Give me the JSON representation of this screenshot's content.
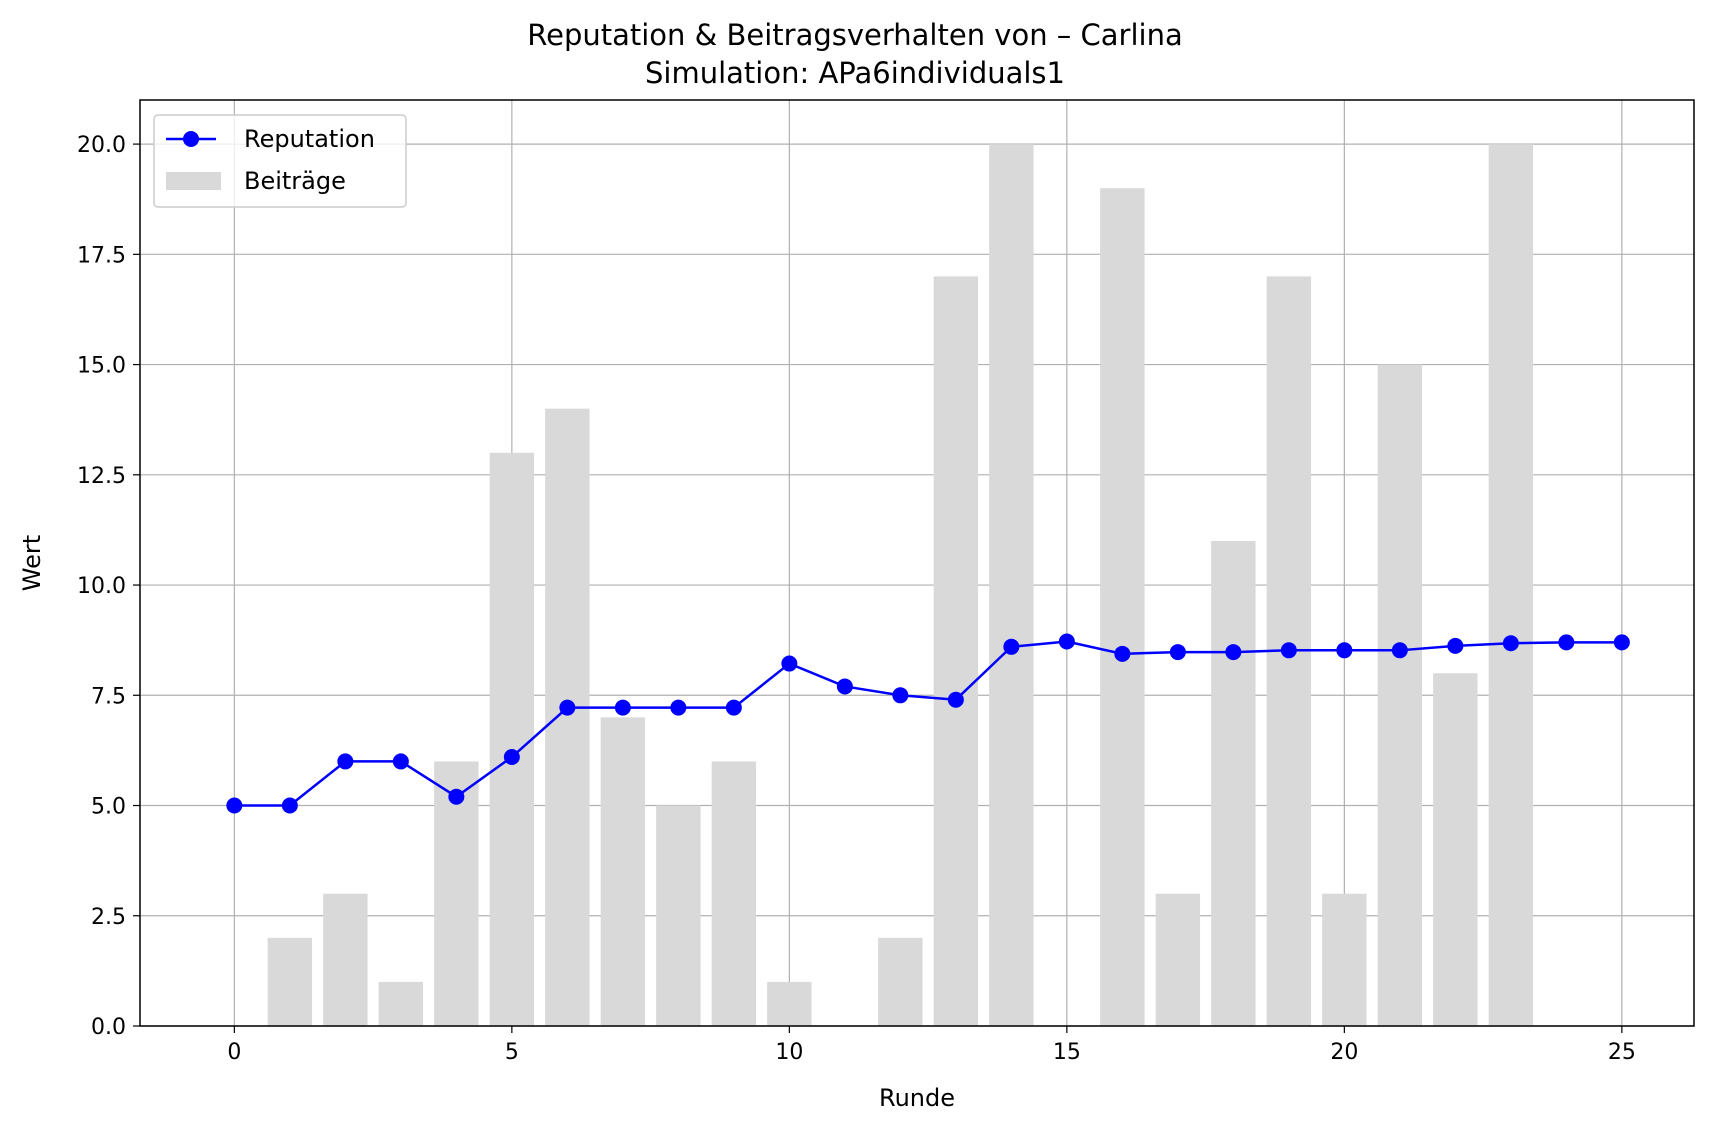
{
  "chart_data": {
    "type": "bar",
    "title": "Reputation & Beitragsverhalten von – Carlina",
    "subtitle": "Simulation: APa6individuals1",
    "xlabel": "Runde",
    "ylabel": "Wert",
    "xlim": [
      -1.7,
      26.3
    ],
    "ylim": [
      0,
      21
    ],
    "xticks": [
      0,
      5,
      10,
      15,
      20,
      25
    ],
    "yticks": [
      0.0,
      2.5,
      5.0,
      7.5,
      10.0,
      12.5,
      15.0,
      17.5,
      20.0
    ],
    "xtick_labels": [
      "0",
      "5",
      "10",
      "15",
      "20",
      "25"
    ],
    "ytick_labels": [
      "0.0",
      "2.5",
      "5.0",
      "7.5",
      "10.0",
      "12.5",
      "15.0",
      "17.5",
      "20.0"
    ],
    "grid": true,
    "legend_position": "upper-left",
    "x": [
      0,
      1,
      2,
      3,
      4,
      5,
      6,
      7,
      8,
      9,
      10,
      11,
      12,
      13,
      14,
      15,
      16,
      17,
      18,
      19,
      20,
      21,
      22,
      23,
      24,
      25
    ],
    "series": [
      {
        "name": "Reputation",
        "type": "line",
        "color": "#0000ff",
        "values": [
          5.0,
          5.0,
          6.0,
          6.0,
          5.2,
          6.1,
          7.22,
          7.22,
          7.22,
          7.22,
          8.22,
          7.7,
          7.5,
          7.4,
          8.6,
          8.72,
          8.44,
          8.48,
          8.48,
          8.52,
          8.52,
          8.52,
          8.62,
          8.68,
          8.7,
          8.7
        ]
      },
      {
        "name": "Beiträge",
        "type": "bar",
        "color": "#d9d9d9",
        "values": [
          0,
          2,
          3,
          1,
          6,
          13,
          14,
          7,
          5,
          6,
          1,
          0,
          2,
          17,
          20,
          0,
          19,
          3,
          11,
          17,
          3,
          15,
          8,
          20,
          0,
          0
        ]
      }
    ]
  }
}
